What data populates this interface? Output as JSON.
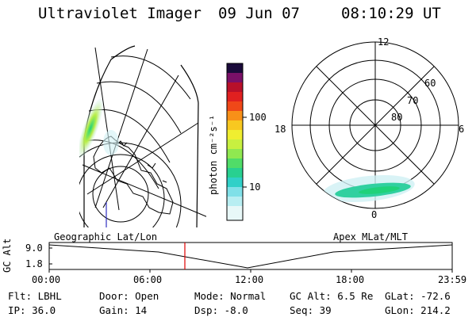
{
  "header": {
    "instrument": "Ultraviolet Imager",
    "date": "09 Jun 07",
    "time": "08:10:29 UT"
  },
  "colorbar": {
    "unit_label": "photon cm⁻²s⁻¹",
    "tick_100": "100",
    "tick_10": "10"
  },
  "polar_plot": {
    "label_12": "12",
    "label_6": "6",
    "label_18": "18",
    "label_0": "0",
    "label_60": "60",
    "label_70": "70",
    "label_80": "80"
  },
  "timeline": {
    "left_label": "Geographic Lat/Lon",
    "right_label": "Apex MLat/MLT",
    "y_axis_label": "GC Alt",
    "y_max": "9.0",
    "y_min": "1.8",
    "x_ticks": [
      "00:00",
      "06:00",
      "12:00",
      "18:00",
      "23:59"
    ],
    "current_time_marker": "08:10"
  },
  "info": {
    "flt": "Flt: LBHL",
    "ip": "IP: 36.0",
    "door": "Door: Open",
    "gain": "Gain: 14",
    "mode": "Mode: Normal",
    "dsp": "Dsp:   -8.0",
    "gcalt": "GC Alt: 6.5 Re",
    "seq": "Seq: 39",
    "glat": "GLat: -72.6",
    "glon": "GLon: 214.2"
  },
  "colors": {
    "marker": "#e00000",
    "aurora_core": "#1fd27a",
    "aurora_mid": "#b8ee48",
    "aurora_edge": "#d0f0f4"
  }
}
